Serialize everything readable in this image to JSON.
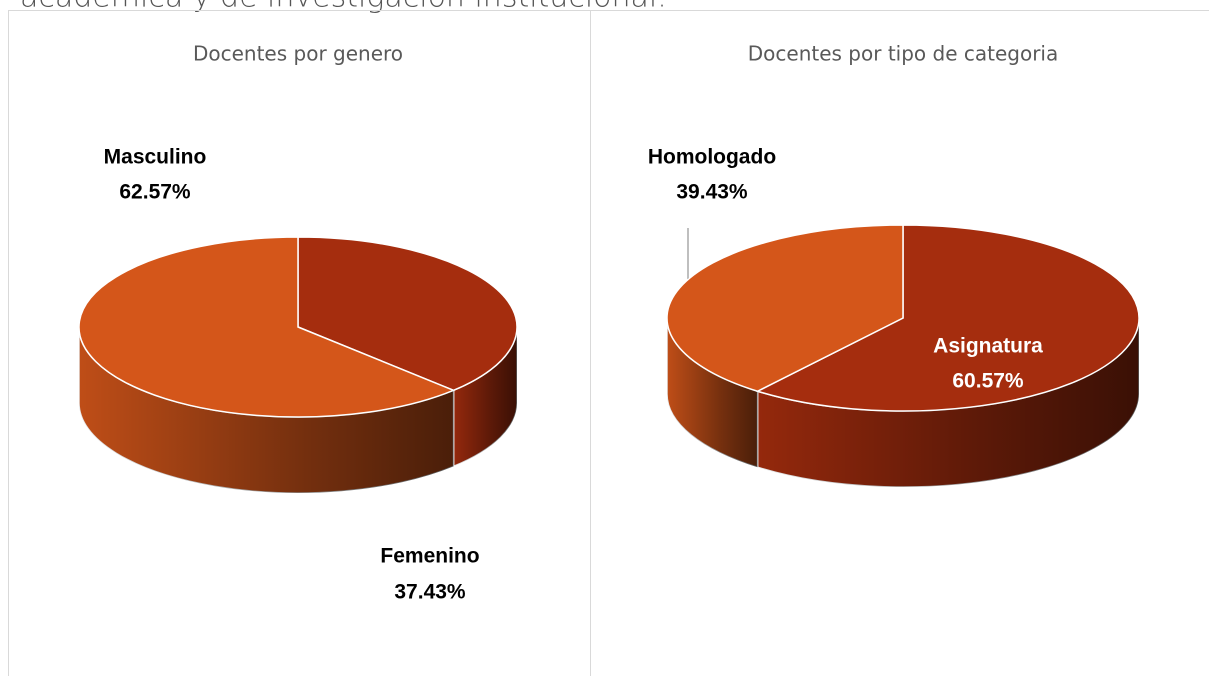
{
  "header": "académica y de investigación institucional.",
  "chart_data": [
    {
      "type": "pie",
      "title": "Docentes por genero",
      "categories": [
        "Femenino",
        "Masculino"
      ],
      "values": [
        37.43,
        62.57
      ],
      "value_labels": [
        "37.43%",
        "62.57%"
      ],
      "colors": [
        "#a52d0e",
        "#d4561a"
      ]
    },
    {
      "type": "pie",
      "title": "Docentes por tipo de categoria",
      "categories": [
        "Asignatura",
        "Homologado"
      ],
      "values": [
        60.57,
        39.43
      ],
      "value_labels": [
        "60.57%",
        "39.43%"
      ],
      "colors": [
        "#a52d0e",
        "#d4561a"
      ]
    }
  ]
}
